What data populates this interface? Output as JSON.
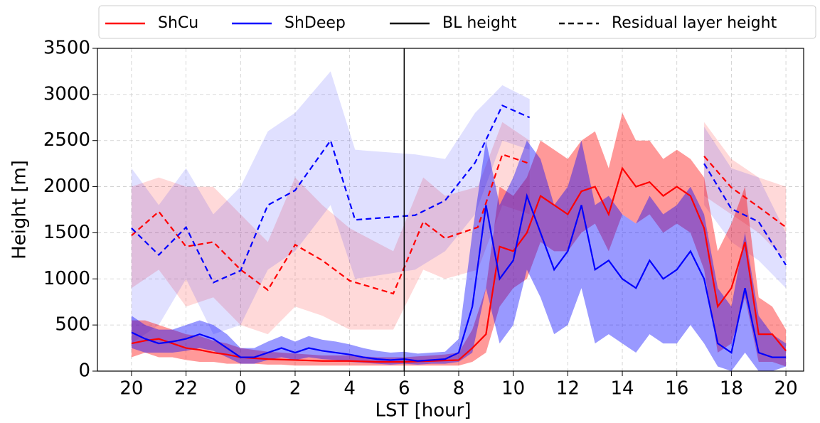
{
  "chart_data": {
    "type": "line",
    "xlabel": "LST [hour]",
    "ylabel": "Height [m]",
    "xlim": [
      -1.25,
      24.65
    ],
    "ylim": [
      0,
      3500
    ],
    "xticks": [
      {
        "value": 0,
        "label": "20"
      },
      {
        "value": 2,
        "label": "22"
      },
      {
        "value": 4,
        "label": "0"
      },
      {
        "value": 6,
        "label": "2"
      },
      {
        "value": 8,
        "label": "4"
      },
      {
        "value": 10,
        "label": "6"
      },
      {
        "value": 12,
        "label": "8"
      },
      {
        "value": 14,
        "label": "10"
      },
      {
        "value": 16,
        "label": "12"
      },
      {
        "value": 18,
        "label": "14"
      },
      {
        "value": 20,
        "label": "16"
      },
      {
        "value": 22,
        "label": "18"
      },
      {
        "value": 24,
        "label": "20"
      }
    ],
    "yticks": [
      0,
      500,
      1000,
      1500,
      2000,
      2500,
      3000,
      3500
    ],
    "grid": true,
    "vline": 10,
    "legend": [
      {
        "label": "ShCu",
        "color": "#ff0000",
        "dash": "solid"
      },
      {
        "label": "ShDeep",
        "color": "#0000ff",
        "dash": "solid"
      },
      {
        "label": "BL height",
        "color": "#000000",
        "dash": "solid"
      },
      {
        "label": "Residual layer height",
        "color": "#000000",
        "dash": "dashed"
      }
    ],
    "series": [
      {
        "color": "#ff0000",
        "dash": "dashed",
        "band_opacity": 0.15,
        "x": [
          0,
          1,
          2,
          3,
          4,
          5,
          6,
          7,
          8,
          9.6,
          10.7,
          11.5,
          12.7,
          13.6,
          14.6,
          17,
          21,
          22,
          23,
          24
        ],
        "values": [
          1470,
          1730,
          1350,
          1400,
          1100,
          880,
          1370,
          1200,
          980,
          840,
          1620,
          1440,
          1560,
          2350,
          2250,
          null,
          2330,
          1990,
          1780,
          1560
        ],
        "lower": [
          900,
          1100,
          700,
          800,
          500,
          400,
          700,
          600,
          450,
          450,
          1100,
          1000,
          1100,
          1800,
          1700,
          null,
          1900,
          1700,
          1500,
          1200
        ],
        "upper": [
          2000,
          2100,
          2000,
          2000,
          1700,
          1400,
          2100,
          1800,
          1550,
          1300,
          2100,
          1900,
          2000,
          2700,
          2500,
          null,
          2700,
          2300,
          2100,
          2000
        ]
      },
      {
        "color": "#0000ff",
        "dash": "dashed",
        "band_opacity": 0.12,
        "x": [
          0,
          1,
          2,
          3,
          4,
          5,
          6,
          7.3,
          8.2,
          10.4,
          11.5,
          12.6,
          13.6,
          14.6,
          17,
          21,
          22,
          23,
          24
        ],
        "values": [
          1550,
          1260,
          1560,
          960,
          1090,
          1800,
          1960,
          2500,
          1640,
          1690,
          1850,
          2260,
          2880,
          2750,
          null,
          2250,
          1760,
          1620,
          1150
        ],
        "lower": [
          300,
          500,
          1000,
          400,
          500,
          1100,
          1300,
          1800,
          1000,
          1100,
          1300,
          1700,
          2500,
          2400,
          null,
          1800,
          1400,
          1200,
          900
        ],
        "upper": [
          2200,
          1800,
          2200,
          1700,
          2000,
          2600,
          2800,
          3250,
          2400,
          2350,
          2300,
          2800,
          3100,
          2950,
          null,
          2650,
          2200,
          2100,
          1500
        ]
      },
      {
        "color": "#ff0000",
        "dash": "solid",
        "band_opacity": 0.4,
        "x": [
          0,
          0.5,
          1,
          1.5,
          2,
          2.5,
          3,
          3.5,
          4,
          4.5,
          5,
          5.5,
          6,
          6.5,
          7,
          7.5,
          8,
          8.5,
          9,
          9.5,
          10,
          10.5,
          11,
          11.5,
          12,
          12.5,
          13,
          13.5,
          14,
          14.5,
          15,
          15.5,
          16,
          16.5,
          17,
          17.5,
          18,
          18.5,
          19,
          19.5,
          20,
          20.5,
          21,
          21.5,
          22,
          22.5,
          23,
          23.5,
          24
        ],
        "values": [
          300,
          330,
          350,
          300,
          250,
          230,
          200,
          180,
          150,
          140,
          130,
          125,
          120,
          115,
          110,
          110,
          110,
          105,
          100,
          100,
          100,
          105,
          110,
          115,
          120,
          250,
          400,
          1350,
          1300,
          1500,
          1900,
          1800,
          1700,
          1950,
          2000,
          1700,
          2200,
          2000,
          2050,
          1900,
          2000,
          1900,
          1550,
          700,
          900,
          1400,
          400,
          400,
          220
        ],
        "lower": [
          150,
          200,
          150,
          150,
          120,
          100,
          100,
          80,
          80,
          80,
          70,
          70,
          60,
          60,
          60,
          60,
          60,
          60,
          60,
          60,
          60,
          60,
          60,
          60,
          60,
          100,
          200,
          700,
          900,
          1000,
          1400,
          1300,
          1300,
          1500,
          1600,
          1300,
          1700,
          1600,
          1700,
          1500,
          1600,
          1500,
          1100,
          200,
          300,
          800,
          100,
          100,
          50
        ],
        "upper": [
          550,
          550,
          500,
          450,
          400,
          380,
          330,
          300,
          250,
          230,
          210,
          200,
          190,
          180,
          170,
          170,
          170,
          160,
          150,
          150,
          150,
          160,
          170,
          180,
          200,
          450,
          900,
          2000,
          1900,
          2100,
          2500,
          2400,
          2300,
          2500,
          2600,
          2200,
          2800,
          2500,
          2500,
          2300,
          2400,
          2300,
          2100,
          1300,
          1600,
          2000,
          800,
          700,
          450
        ]
      },
      {
        "color": "#0000ff",
        "dash": "solid",
        "band_opacity": 0.4,
        "x": [
          0,
          0.5,
          1,
          1.5,
          2,
          2.5,
          3,
          3.5,
          4,
          4.5,
          5,
          5.5,
          6,
          6.5,
          7,
          7.5,
          8,
          8.5,
          9,
          9.5,
          10,
          10.5,
          11,
          11.5,
          12,
          12.5,
          13,
          13.5,
          14,
          14.5,
          15,
          15.5,
          16,
          16.5,
          17,
          17.5,
          18,
          18.5,
          19,
          19.5,
          20,
          20.5,
          21,
          21.5,
          22,
          22.5,
          23,
          23.5,
          24
        ],
        "values": [
          420,
          350,
          300,
          320,
          350,
          400,
          350,
          250,
          150,
          150,
          200,
          250,
          200,
          250,
          220,
          200,
          180,
          150,
          130,
          120,
          130,
          110,
          120,
          130,
          200,
          700,
          1800,
          1000,
          1200,
          1900,
          1500,
          1100,
          1300,
          1800,
          1100,
          1200,
          1000,
          900,
          1200,
          1000,
          1100,
          1300,
          1000,
          300,
          200,
          900,
          200,
          150,
          150
        ],
        "lower": [
          250,
          200,
          200,
          200,
          220,
          250,
          220,
          150,
          80,
          80,
          120,
          150,
          120,
          150,
          130,
          120,
          100,
          90,
          80,
          70,
          80,
          70,
          80,
          80,
          100,
          200,
          900,
          300,
          500,
          1100,
          800,
          400,
          500,
          900,
          300,
          400,
          300,
          200,
          400,
          300,
          300,
          500,
          300,
          50,
          0,
          200,
          0,
          0,
          50
        ],
        "upper": [
          600,
          500,
          450,
          450,
          500,
          550,
          500,
          400,
          250,
          250,
          320,
          380,
          320,
          380,
          340,
          320,
          290,
          250,
          220,
          200,
          210,
          190,
          200,
          210,
          350,
          1500,
          2500,
          1800,
          2100,
          2500,
          2300,
          1800,
          2000,
          2500,
          1800,
          1900,
          1700,
          1600,
          1900,
          1700,
          1800,
          2000,
          1700,
          900,
          700,
          1500,
          600,
          400,
          300
        ]
      }
    ]
  }
}
